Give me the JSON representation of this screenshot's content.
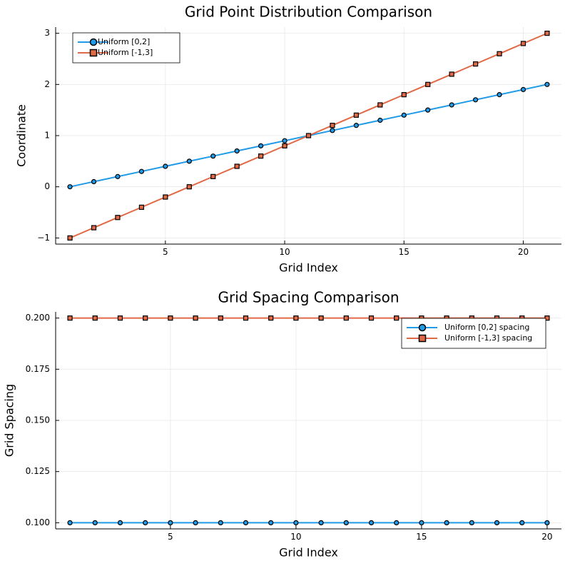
{
  "chart_data": [
    {
      "type": "line",
      "title": "Grid Point Distribution Comparison",
      "xlabel": "Grid Index",
      "ylabel": "Coordinate",
      "xlim": [
        0.4,
        21.6
      ],
      "ylim": [
        -1.12,
        3.12
      ],
      "xticks": [
        5,
        10,
        15,
        20
      ],
      "yticks": [
        -1,
        0,
        1,
        2,
        3
      ],
      "ytick_labels": [
        "−1",
        "0",
        "1",
        "2",
        "3"
      ],
      "grid": true,
      "legend_position": "top-left",
      "series": [
        {
          "name": "Uniform [0,2]",
          "marker": "circle",
          "color": "#1f9be8",
          "x": [
            1,
            2,
            3,
            4,
            5,
            6,
            7,
            8,
            9,
            10,
            11,
            12,
            13,
            14,
            15,
            16,
            17,
            18,
            19,
            20,
            21
          ],
          "values": [
            0,
            0.1,
            0.2,
            0.3,
            0.4,
            0.5,
            0.6,
            0.7,
            0.8,
            0.9,
            1.0,
            1.1,
            1.2,
            1.3,
            1.4,
            1.5,
            1.6,
            1.7,
            1.8,
            1.9,
            2.0
          ]
        },
        {
          "name": "Uniform [-1,3]",
          "marker": "square",
          "color": "#e06a45",
          "x": [
            1,
            2,
            3,
            4,
            5,
            6,
            7,
            8,
            9,
            10,
            11,
            12,
            13,
            14,
            15,
            16,
            17,
            18,
            19,
            20,
            21
          ],
          "values": [
            -1.0,
            -0.8,
            -0.6,
            -0.4,
            -0.2,
            0,
            0.2,
            0.4,
            0.6,
            0.8,
            1.0,
            1.2,
            1.4,
            1.6,
            1.8,
            2.0,
            2.2,
            2.4,
            2.6,
            2.8,
            3.0
          ]
        }
      ]
    },
    {
      "type": "line",
      "title": "Grid Spacing Comparison",
      "xlabel": "Grid Index",
      "ylabel": "Grid Spacing",
      "xlim": [
        0.43,
        20.57
      ],
      "ylim": [
        0.097,
        0.203
      ],
      "xticks": [
        5,
        10,
        15,
        20
      ],
      "yticks": [
        0.1,
        0.125,
        0.15,
        0.175,
        0.2
      ],
      "ytick_labels": [
        "0.100",
        "0.125",
        "0.150",
        "0.175",
        "0.200"
      ],
      "grid": true,
      "legend_position": "top-right",
      "series": [
        {
          "name": "Uniform [0,2] spacing",
          "marker": "circle",
          "color": "#1f9be8",
          "x": [
            1,
            2,
            3,
            4,
            5,
            6,
            7,
            8,
            9,
            10,
            11,
            12,
            13,
            14,
            15,
            16,
            17,
            18,
            19,
            20
          ],
          "values": [
            0.1,
            0.1,
            0.1,
            0.1,
            0.1,
            0.1,
            0.1,
            0.1,
            0.1,
            0.1,
            0.1,
            0.1,
            0.1,
            0.1,
            0.1,
            0.1,
            0.1,
            0.1,
            0.1,
            0.1
          ]
        },
        {
          "name": "Uniform [-1,3] spacing",
          "marker": "square",
          "color": "#e06a45",
          "x": [
            1,
            2,
            3,
            4,
            5,
            6,
            7,
            8,
            9,
            10,
            11,
            12,
            13,
            14,
            15,
            16,
            17,
            18,
            19,
            20
          ],
          "values": [
            0.2,
            0.2,
            0.2,
            0.2,
            0.2,
            0.2,
            0.2,
            0.2,
            0.2,
            0.2,
            0.2,
            0.2,
            0.2,
            0.2,
            0.2,
            0.2,
            0.2,
            0.2,
            0.2,
            0.2
          ]
        }
      ]
    }
  ]
}
